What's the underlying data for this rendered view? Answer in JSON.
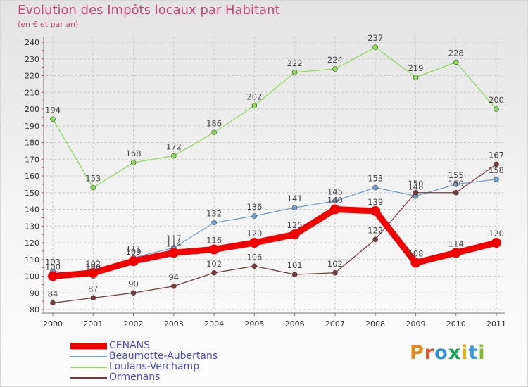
{
  "title": "Evolution des Impôts locaux par Habitant",
  "subtitle": "(en € et par an)",
  "brand": {
    "text": "Proxiti",
    "letter_colors": [
      "#e58a1f",
      "#e05a2a",
      "#2f8fd8",
      "#1aa35a",
      "#e0b020",
      "#3c9be0",
      "#7cbf2a"
    ]
  },
  "chart_data": {
    "type": "line",
    "x": [
      "2000",
      "2001",
      "2002",
      "2003",
      "2004",
      "2005",
      "2006",
      "2007",
      "2008",
      "2009",
      "2010",
      "2011"
    ],
    "ylim": [
      80,
      240
    ],
    "yticks": [
      "80",
      "90",
      "100",
      "110",
      "120",
      "130",
      "140",
      "150",
      "160",
      "170",
      "180",
      "190",
      "200",
      "210",
      "220",
      "230",
      "240"
    ],
    "grid": true,
    "legend_position": "bottom-left",
    "series": [
      {
        "name": "CENANS",
        "color": "#f00000",
        "values": [
          100,
          102,
          109,
          114,
          116,
          120,
          125,
          140,
          139,
          108,
          114,
          120
        ],
        "labels": [
          "100",
          "102",
          "109",
          "114",
          "116",
          "120",
          "125",
          "140",
          "139",
          "108",
          "114",
          "120"
        ]
      },
      {
        "name": "Beaumotte-Aubertans",
        "color": "#6f9fd0",
        "values": [
          103,
          100,
          111,
          117,
          132,
          136,
          141,
          145,
          153,
          148,
          155,
          158
        ],
        "labels": [
          "103",
          "100",
          "111",
          "117",
          "132",
          "136",
          "141",
          "145",
          "153",
          "148",
          "155",
          "158"
        ]
      },
      {
        "name": "Loulans-Verchamp",
        "color": "#8fdc5a",
        "values": [
          194,
          153,
          168,
          172,
          186,
          202,
          222,
          224,
          237,
          219,
          228,
          200
        ],
        "labels": [
          "194",
          "153",
          "168",
          "172",
          "186",
          "202",
          "222",
          "224",
          "237",
          "219",
          "228",
          "200"
        ]
      },
      {
        "name": "Ormenans",
        "color": "#7a3a3a",
        "values": [
          84,
          87,
          90,
          94,
          102,
          106,
          101,
          102,
          122,
          150,
          150,
          167
        ],
        "labels": [
          "84",
          "87",
          "90",
          "94",
          "102",
          "106",
          "101",
          "102",
          "122",
          "150",
          "150",
          "167"
        ]
      }
    ]
  }
}
